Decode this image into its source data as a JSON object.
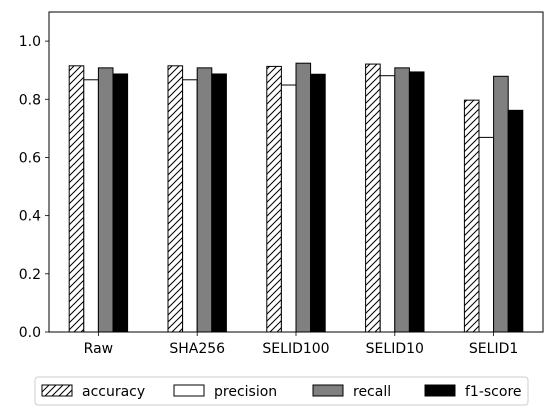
{
  "chart_data": {
    "type": "bar",
    "title": "",
    "xlabel": "",
    "ylabel": "",
    "categories": [
      "Raw",
      "SHA256",
      "SELID100",
      "SELID10",
      "SELID1"
    ],
    "ylim": [
      0.0,
      1.1
    ],
    "yticks": [
      0.0,
      0.2,
      0.4,
      0.6,
      0.8,
      1.0
    ],
    "ytick_labels": [
      "0.0",
      "0.2",
      "0.4",
      "0.6",
      "0.8",
      "1.0"
    ],
    "grid": false,
    "legend_position": "bottom-center",
    "series": [
      {
        "name": "accuracy",
        "fill": "hatch",
        "color": "#ffffff",
        "values": [
          0.915,
          0.915,
          0.913,
          0.921,
          0.797
        ]
      },
      {
        "name": "precision",
        "fill": "solid",
        "color": "#ffffff",
        "values": [
          0.867,
          0.867,
          0.849,
          0.881,
          0.669
        ]
      },
      {
        "name": "recall",
        "fill": "solid",
        "color": "#808080",
        "values": [
          0.908,
          0.908,
          0.924,
          0.908,
          0.879
        ]
      },
      {
        "name": "f1-score",
        "fill": "solid",
        "color": "#000000",
        "values": [
          0.887,
          0.887,
          0.886,
          0.894,
          0.762
        ]
      }
    ]
  }
}
